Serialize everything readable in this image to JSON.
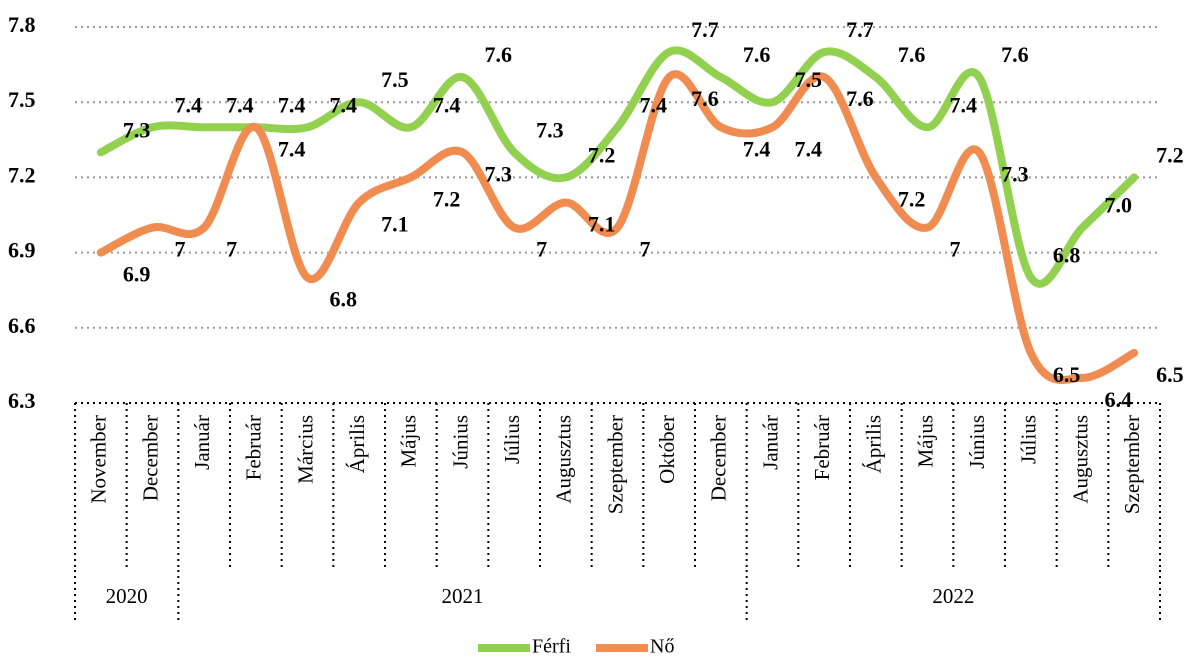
{
  "chart_data": {
    "type": "line",
    "categories": [
      "November",
      "December",
      "Január",
      "Február",
      "Március",
      "Április",
      "Május",
      "Június",
      "Július",
      "Augusztus",
      "Szeptember",
      "Október",
      "December",
      "Január",
      "Február",
      "Április",
      "Május",
      "Június",
      "Július",
      "Augusztus",
      "Szeptember"
    ],
    "x_groups": [
      {
        "label": "2020",
        "count": 2
      },
      {
        "label": "2021",
        "count": 11
      },
      {
        "label": "2022",
        "count": 8
      }
    ],
    "series": [
      {
        "name": "Férfi",
        "color": "#92d050",
        "values": [
          7.3,
          7.4,
          7.4,
          7.4,
          7.4,
          7.5,
          7.4,
          7.6,
          7.3,
          7.2,
          7.4,
          7.7,
          7.6,
          7.5,
          7.7,
          7.6,
          7.4,
          7.6,
          6.8,
          7.0,
          7.2
        ],
        "value_labels": [
          "7.3",
          "7.4",
          "7.4",
          "7.4",
          "7.4",
          "7.5",
          "7.4",
          "7.6",
          "7.3",
          "7.2",
          "7.4",
          "7.7",
          "7.6",
          "7.5",
          "7.7",
          "7.6",
          "7.4",
          "7.6",
          "6.8",
          "7.0",
          "7.2"
        ]
      },
      {
        "name": "Nő",
        "color": "#f08c50",
        "values": [
          6.9,
          7.0,
          7.0,
          7.4,
          6.8,
          7.1,
          7.2,
          7.3,
          7.0,
          7.1,
          7.0,
          7.6,
          7.4,
          7.4,
          7.6,
          7.2,
          7.0,
          7.3,
          6.5,
          6.4,
          6.5
        ],
        "value_labels": [
          "6.9",
          "7",
          "7",
          "7.4",
          "6.8",
          "7.1",
          "7.2",
          "7.3",
          "7",
          "7.1",
          "7",
          "7.6",
          "7.4",
          "7.4",
          "7.6",
          "7.2",
          "7",
          "7.3",
          "6.5",
          "6.4",
          "6.5"
        ]
      }
    ],
    "ylim": [
      6.3,
      7.8
    ],
    "yticks": [
      6.3,
      6.6,
      6.9,
      7.2,
      7.5,
      7.8
    ],
    "grid": true,
    "legend": "bottom"
  }
}
